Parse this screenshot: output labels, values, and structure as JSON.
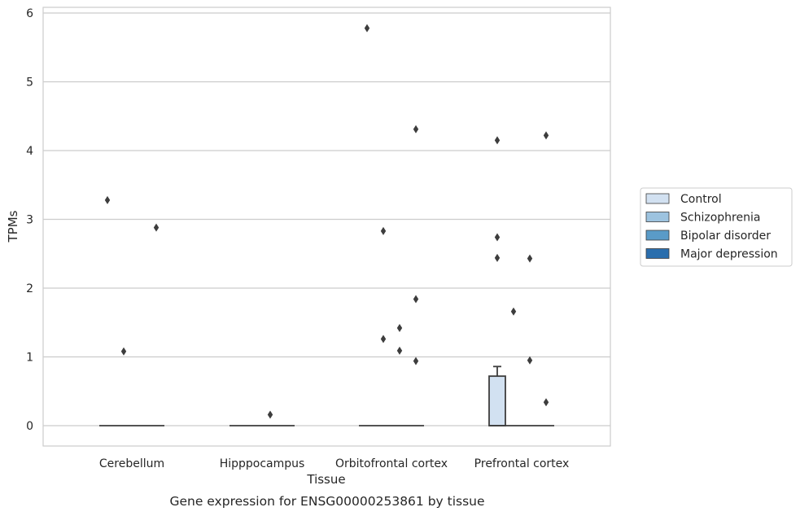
{
  "chart_data": {
    "type": "box",
    "xlabel": "Tissue",
    "ylabel": "TPMs",
    "caption": "Gene expression for ENSG00000253861 by tissue",
    "ylim": [
      -0.28,
      6.1
    ],
    "yticks": [
      "0",
      "1",
      "2",
      "3",
      "4",
      "5",
      "6"
    ],
    "grid": "horizontal",
    "legend_position": "right",
    "categories": [
      "Cerebellum",
      "Hipppocampus",
      "Orbitofrontal cortex",
      "Prefrontal cortex"
    ],
    "series": [
      {
        "name": "Control",
        "color": "#d2e1f1",
        "boxes": [
          {
            "q1": 0,
            "median": 0,
            "q3": 0,
            "whisker_low": 0,
            "whisker_high": 0,
            "outliers": [
              3.28
            ]
          },
          {
            "q1": 0,
            "median": 0,
            "q3": 0,
            "whisker_low": 0,
            "whisker_high": 0,
            "outliers": []
          },
          {
            "q1": 0,
            "median": 0,
            "q3": 0,
            "whisker_low": 0,
            "whisker_high": 0,
            "outliers": [
              5.78
            ]
          },
          {
            "q1": 0,
            "median": 0,
            "q3": 0.72,
            "whisker_low": 0,
            "whisker_high": 0.86,
            "outliers": [
              4.15,
              2.74,
              2.44
            ]
          }
        ]
      },
      {
        "name": "Schizophrenia",
        "color": "#9dc3df",
        "boxes": [
          {
            "q1": 0,
            "median": 0,
            "q3": 0,
            "whisker_low": 0,
            "whisker_high": 0,
            "outliers": [
              1.08
            ]
          },
          {
            "q1": 0,
            "median": 0,
            "q3": 0,
            "whisker_low": 0,
            "whisker_high": 0,
            "outliers": []
          },
          {
            "q1": 0,
            "median": 0,
            "q3": 0,
            "whisker_low": 0,
            "whisker_high": 0,
            "outliers": [
              2.83,
              1.26
            ]
          },
          {
            "q1": 0,
            "median": 0,
            "q3": 0,
            "whisker_low": 0,
            "whisker_high": 0,
            "outliers": [
              1.66
            ]
          }
        ]
      },
      {
        "name": "Bipolar disorder",
        "color": "#5a9bc8",
        "boxes": [
          {
            "q1": 0,
            "median": 0,
            "q3": 0,
            "whisker_low": 0,
            "whisker_high": 0,
            "outliers": []
          },
          {
            "q1": 0,
            "median": 0,
            "q3": 0,
            "whisker_low": 0,
            "whisker_high": 0,
            "outliers": [
              0.16
            ]
          },
          {
            "q1": 0,
            "median": 0,
            "q3": 0,
            "whisker_low": 0,
            "whisker_high": 0,
            "outliers": [
              1.42,
              1.09
            ]
          },
          {
            "q1": 0,
            "median": 0,
            "q3": 0,
            "whisker_low": 0,
            "whisker_high": 0,
            "outliers": [
              2.43,
              0.95
            ]
          }
        ]
      },
      {
        "name": "Major depression",
        "color": "#2a6ead",
        "boxes": [
          {
            "q1": 0,
            "median": 0,
            "q3": 0,
            "whisker_low": 0,
            "whisker_high": 0,
            "outliers": [
              2.88
            ]
          },
          {
            "q1": 0,
            "median": 0,
            "q3": 0,
            "whisker_low": 0,
            "whisker_high": 0,
            "outliers": []
          },
          {
            "q1": 0,
            "median": 0,
            "q3": 0,
            "whisker_low": 0,
            "whisker_high": 0,
            "outliers": [
              4.31,
              1.84,
              0.94
            ]
          },
          {
            "q1": 0,
            "median": 0,
            "q3": 0,
            "whisker_low": 0,
            "whisker_high": 0,
            "outliers": [
              4.22,
              0.34
            ]
          }
        ]
      }
    ]
  }
}
